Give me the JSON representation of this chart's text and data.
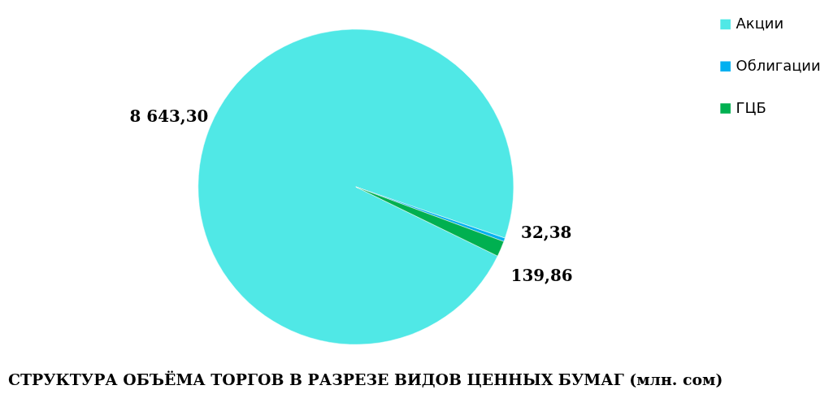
{
  "chart_data": {
    "type": "pie",
    "title": "СТРУКТУРА ОБЪЁМА ТОРГОВ В РАЗРЕЗЕ ВИДОВ ЦЕННЫХ БУМАГ  (млн. сом)",
    "categories": [
      "Акции",
      "Облигации",
      "ГЦБ"
    ],
    "values": [
      8643.3,
      32.38,
      139.86
    ],
    "colors": [
      "#50e8e6",
      "#00b0f0",
      "#00b050"
    ],
    "value_labels": [
      "8 643,30",
      "32,38",
      "139,86"
    ],
    "legend": "right"
  }
}
